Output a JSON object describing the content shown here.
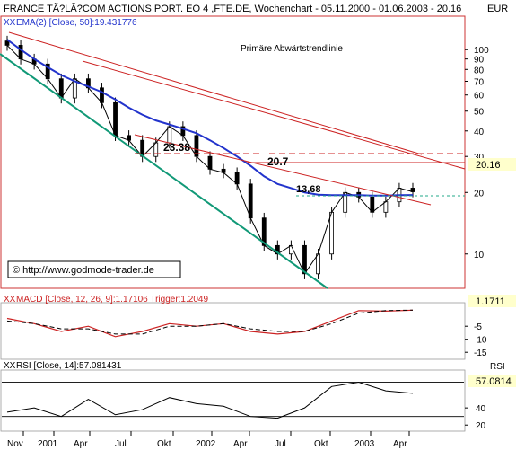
{
  "header": {
    "title": "FRANCE TÃ?LÃ?COM ACTIONS PORT. EO 4 ,FTE.DE, Wochenchart - 05.11.2000 - 01.06.2003 - 20.16",
    "currency": "EUR"
  },
  "watermark": "© http://www.godmode-trader.de",
  "colors": {
    "price_candles": "#000000",
    "ema": "#2233cc",
    "trend_lines": "#cc2222",
    "support_line": "#119977",
    "support_dash": "#22aa88",
    "macd_line": "#cc2222",
    "trigger_line": "#000000",
    "frame": "#cc3333"
  },
  "chart_data": [
    {
      "type": "line",
      "panel": "price",
      "title": "FRANCE TÃ?LÃ?COM ACTIONS PORT. EO 4 ,FTE.DE, Wochenchart - 05.11.2000 - 01.06.2003 - 20.16",
      "y_scale": "log",
      "ylim": [
        7,
        140
      ],
      "y_ticks": [
        10,
        20,
        30,
        40,
        50,
        60,
        70,
        80,
        90,
        100
      ],
      "y_tick_labels": [
        "10",
        "20",
        "30",
        "40",
        "50",
        "60",
        "70",
        "80",
        "90",
        "100"
      ],
      "x_tick_labels": [
        "Nov",
        "2001",
        "Apr",
        "Jul",
        "Okt",
        "2002",
        "Apr",
        "Jul",
        "Okt",
        "2003",
        "Apr"
      ],
      "last_value_label": "20.16",
      "indicator_label": "EMA(2) [Close, 50]:19.431776",
      "indicator_marker": "XX",
      "series": [
        {
          "name": "Close",
          "x": [
            "2000-11",
            "2000-12",
            "2001-01",
            "2001-02",
            "2001-03",
            "2001-04",
            "2001-05",
            "2001-06",
            "2001-07",
            "2001-08",
            "2001-09",
            "2001-10",
            "2001-11",
            "2001-12",
            "2002-01",
            "2002-02",
            "2002-03",
            "2002-04",
            "2002-05",
            "2002-06",
            "2002-07",
            "2002-08",
            "2002-09",
            "2002-10",
            "2002-11",
            "2002-12",
            "2003-01",
            "2003-02",
            "2003-03",
            "2003-04",
            "2003-05"
          ],
          "values": [
            105,
            90,
            85,
            72,
            58,
            72,
            65,
            55,
            38,
            36,
            30,
            35,
            42,
            38,
            30,
            26,
            25,
            22,
            15,
            11,
            10,
            11,
            8,
            10,
            16,
            20,
            19,
            16,
            18,
            21,
            20.16
          ]
        },
        {
          "name": "EMA(2) [Close, 50]",
          "x": [
            "2000-11",
            "2000-12",
            "2001-01",
            "2001-02",
            "2001-03",
            "2001-04",
            "2001-05",
            "2001-06",
            "2001-07",
            "2001-08",
            "2001-09",
            "2001-10",
            "2001-11",
            "2001-12",
            "2002-01",
            "2002-02",
            "2002-03",
            "2002-04",
            "2002-05",
            "2002-06",
            "2002-07",
            "2002-08",
            "2002-09",
            "2002-10",
            "2002-11",
            "2002-12",
            "2003-01",
            "2003-02",
            "2003-03",
            "2003-04",
            "2003-05"
          ],
          "values": [
            112,
            100,
            90,
            82,
            75,
            70,
            66,
            62,
            57,
            52,
            48,
            45,
            43,
            41,
            39,
            36,
            33,
            30,
            27,
            24,
            22,
            21,
            20,
            19.5,
            19.4,
            19.4,
            19.4,
            19.3,
            19.3,
            19.4,
            19.43
          ]
        }
      ],
      "annotations": [
        {
          "text": "Primäre Abwärtstrendlinie"
        },
        {
          "text": "23.38",
          "value": 23.38
        },
        {
          "text": "20.7",
          "value": 20.7
        },
        {
          "text": "13,68",
          "value": 13.68
        }
      ]
    },
    {
      "type": "line",
      "panel": "macd",
      "title": "MACD [Close, 12, 26, 9]:1.17106 Trigger:1.2049",
      "indicator_marker": "XX",
      "ylim": [
        -17,
        3
      ],
      "y_ticks": [
        -5,
        -10,
        -15
      ],
      "y_tick_labels": [
        "-5",
        "-10",
        "-15"
      ],
      "last_value_label": "1.1711",
      "series": [
        {
          "name": "MACD",
          "x": [
            "2000-11",
            "2001-01",
            "2001-03",
            "2001-05",
            "2001-07",
            "2001-09",
            "2001-11",
            "2002-01",
            "2002-03",
            "2002-05",
            "2002-07",
            "2002-09",
            "2002-11",
            "2003-01",
            "2003-03",
            "2003-05"
          ],
          "values": [
            -2,
            -4,
            -7,
            -5,
            -9,
            -7,
            -4,
            -5,
            -4,
            -7,
            -8,
            -7,
            -3,
            1,
            0.8,
            1.17
          ]
        },
        {
          "name": "Trigger",
          "x": [
            "2000-11",
            "2001-01",
            "2001-03",
            "2001-05",
            "2001-07",
            "2001-09",
            "2001-11",
            "2002-01",
            "2002-03",
            "2002-05",
            "2002-07",
            "2002-09",
            "2002-11",
            "2003-01",
            "2003-03",
            "2003-05"
          ],
          "values": [
            -3,
            -4,
            -6,
            -6,
            -8,
            -8,
            -5,
            -5,
            -4,
            -6,
            -7,
            -7,
            -4,
            0,
            1,
            1.2
          ]
        }
      ]
    },
    {
      "type": "line",
      "panel": "rsi",
      "title": "RSI [Close, 14]:57.081431",
      "indicator_marker": "XX",
      "currency": "RSI",
      "ylim": [
        15,
        80
      ],
      "y_ticks": [
        40,
        20
      ],
      "y_tick_labels": [
        "40",
        "20"
      ],
      "last_value_label": "57.0814",
      "series": [
        {
          "name": "RSI",
          "x": [
            "2000-11",
            "2001-01",
            "2001-03",
            "2001-05",
            "2001-07",
            "2001-09",
            "2001-11",
            "2002-01",
            "2002-03",
            "2002-05",
            "2002-07",
            "2002-09",
            "2002-11",
            "2003-01",
            "2003-03",
            "2003-05"
          ],
          "values": [
            35,
            40,
            30,
            50,
            32,
            38,
            52,
            45,
            42,
            30,
            28,
            40,
            65,
            70,
            60,
            57.08
          ]
        }
      ]
    }
  ]
}
